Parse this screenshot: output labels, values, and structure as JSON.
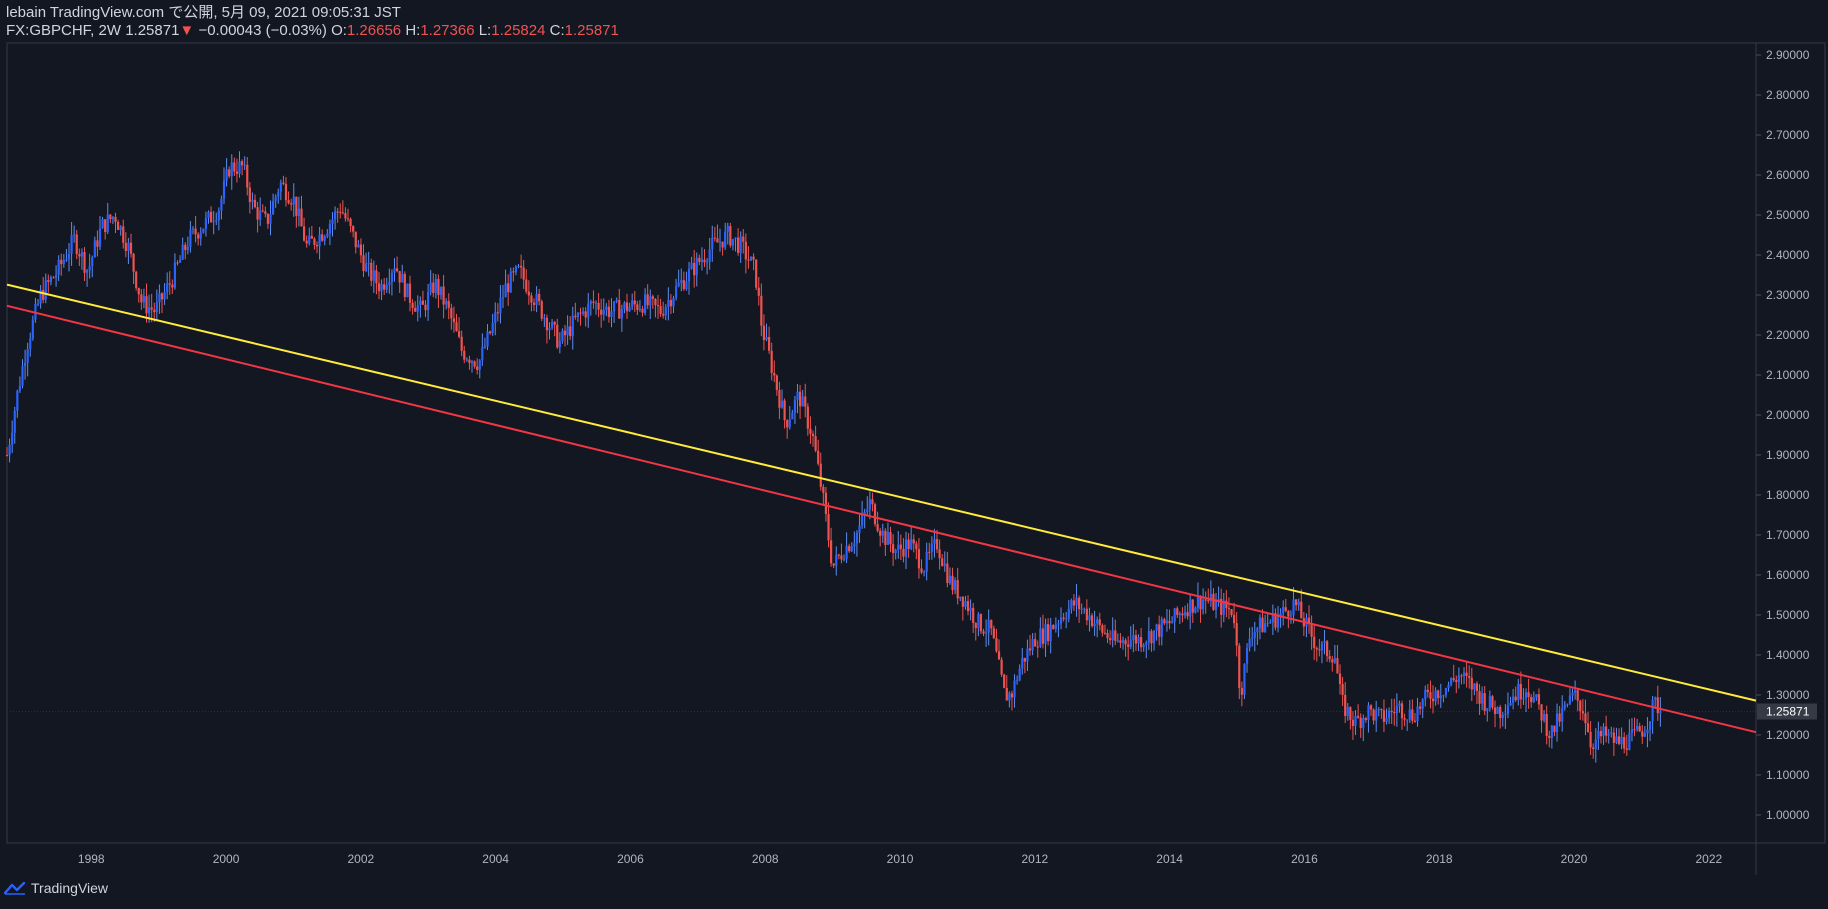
{
  "header": {
    "publisher": "lebain TradingView.com で公開, 5月 09, 2021 09:05:31 JST",
    "symbol": "FX:GBPCHF, 2W",
    "last": "1.25871",
    "change_arrow": "▼",
    "change": "−0.00043 (−0.03%)",
    "o_label": "O:",
    "o_value": "1.26656",
    "h_label": "H:",
    "h_value": "1.27366",
    "l_label": "L:",
    "l_value": "1.25824",
    "c_label": "C:",
    "c_value": "1.25871"
  },
  "footer": {
    "brand": "TradingView",
    "logo_icon": "tradingview-logo-icon"
  },
  "chart_data": {
    "type": "candlestick",
    "symbol": "FX:GBPCHF",
    "interval": "2W",
    "xlim": [
      1996.75,
      2022.7
    ],
    "ylim": [
      0.93,
      2.93
    ],
    "x_ticks": [
      "1998",
      "2000",
      "2002",
      "2004",
      "2006",
      "2008",
      "2010",
      "2012",
      "2014",
      "2016",
      "2018",
      "2020",
      "2022"
    ],
    "y_ticks": [
      "1.00000",
      "1.10000",
      "1.20000",
      "1.30000",
      "1.40000",
      "1.50000",
      "1.60000",
      "1.70000",
      "1.80000",
      "1.90000",
      "2.00000",
      "2.10000",
      "2.20000",
      "2.30000",
      "2.40000",
      "2.50000",
      "2.60000",
      "2.70000",
      "2.80000",
      "2.90000"
    ],
    "last_price_label": "1.25871",
    "last_price": 1.25871,
    "colors": {
      "up": "#2962ff",
      "up_wick": "#5b8def",
      "down": "#ef5350",
      "background": "#131722",
      "last_price_bg": "#363a45"
    },
    "price_path": [
      [
        1996.75,
        1.9
      ],
      [
        1996.9,
        2.05
      ],
      [
        1997.05,
        2.18
      ],
      [
        1997.25,
        2.3
      ],
      [
        1997.5,
        2.36
      ],
      [
        1997.75,
        2.44
      ],
      [
        1997.95,
        2.36
      ],
      [
        1998.15,
        2.47
      ],
      [
        1998.35,
        2.5
      ],
      [
        1998.55,
        2.42
      ],
      [
        1998.75,
        2.28
      ],
      [
        1998.95,
        2.26
      ],
      [
        1999.2,
        2.34
      ],
      [
        1999.45,
        2.44
      ],
      [
        1999.7,
        2.48
      ],
      [
        1999.9,
        2.52
      ],
      [
        2000.05,
        2.62
      ],
      [
        2000.25,
        2.62
      ],
      [
        2000.4,
        2.52
      ],
      [
        2000.6,
        2.48
      ],
      [
        2000.8,
        2.58
      ],
      [
        2001.0,
        2.54
      ],
      [
        2001.2,
        2.42
      ],
      [
        2001.45,
        2.46
      ],
      [
        2001.7,
        2.52
      ],
      [
        2001.9,
        2.44
      ],
      [
        2002.1,
        2.36
      ],
      [
        2002.3,
        2.32
      ],
      [
        2002.5,
        2.38
      ],
      [
        2002.7,
        2.3
      ],
      [
        2002.9,
        2.26
      ],
      [
        2003.1,
        2.33
      ],
      [
        2003.3,
        2.26
      ],
      [
        2003.5,
        2.16
      ],
      [
        2003.75,
        2.13
      ],
      [
        2003.95,
        2.22
      ],
      [
        2004.15,
        2.32
      ],
      [
        2004.35,
        2.36
      ],
      [
        2004.55,
        2.3
      ],
      [
        2004.75,
        2.24
      ],
      [
        2004.95,
        2.18
      ],
      [
        2005.2,
        2.24
      ],
      [
        2005.45,
        2.28
      ],
      [
        2005.7,
        2.26
      ],
      [
        2005.95,
        2.27
      ],
      [
        2006.2,
        2.28
      ],
      [
        2006.45,
        2.26
      ],
      [
        2006.7,
        2.32
      ],
      [
        2006.95,
        2.37
      ],
      [
        2007.2,
        2.42
      ],
      [
        2007.45,
        2.45
      ],
      [
        2007.65,
        2.42
      ],
      [
        2007.85,
        2.36
      ],
      [
        2007.95,
        2.22
      ],
      [
        2008.1,
        2.12
      ],
      [
        2008.3,
        1.98
      ],
      [
        2008.5,
        2.05
      ],
      [
        2008.7,
        1.95
      ],
      [
        2008.85,
        1.8
      ],
      [
        2009.0,
        1.62
      ],
      [
        2009.15,
        1.66
      ],
      [
        2009.35,
        1.7
      ],
      [
        2009.55,
        1.78
      ],
      [
        2009.75,
        1.7
      ],
      [
        2009.95,
        1.66
      ],
      [
        2010.15,
        1.68
      ],
      [
        2010.35,
        1.62
      ],
      [
        2010.55,
        1.68
      ],
      [
        2010.75,
        1.58
      ],
      [
        2010.95,
        1.54
      ],
      [
        2011.15,
        1.48
      ],
      [
        2011.35,
        1.46
      ],
      [
        2011.55,
        1.3
      ],
      [
        2011.65,
        1.3
      ],
      [
        2011.8,
        1.38
      ],
      [
        2012.0,
        1.44
      ],
      [
        2012.2,
        1.46
      ],
      [
        2012.4,
        1.5
      ],
      [
        2012.6,
        1.53
      ],
      [
        2012.8,
        1.5
      ],
      [
        2013.0,
        1.46
      ],
      [
        2013.2,
        1.43
      ],
      [
        2013.4,
        1.44
      ],
      [
        2013.6,
        1.44
      ],
      [
        2013.8,
        1.46
      ],
      [
        2014.0,
        1.48
      ],
      [
        2014.25,
        1.52
      ],
      [
        2014.5,
        1.54
      ],
      [
        2014.75,
        1.52
      ],
      [
        2014.95,
        1.51
      ],
      [
        2015.05,
        1.3
      ],
      [
        2015.2,
        1.46
      ],
      [
        2015.45,
        1.48
      ],
      [
        2015.65,
        1.5
      ],
      [
        2015.85,
        1.53
      ],
      [
        2016.0,
        1.48
      ],
      [
        2016.2,
        1.42
      ],
      [
        2016.45,
        1.4
      ],
      [
        2016.55,
        1.28
      ],
      [
        2016.75,
        1.23
      ],
      [
        2016.95,
        1.26
      ],
      [
        2017.15,
        1.24
      ],
      [
        2017.4,
        1.27
      ],
      [
        2017.6,
        1.25
      ],
      [
        2017.85,
        1.3
      ],
      [
        2018.1,
        1.32
      ],
      [
        2018.3,
        1.35
      ],
      [
        2018.5,
        1.32
      ],
      [
        2018.7,
        1.28
      ],
      [
        2018.9,
        1.26
      ],
      [
        2019.1,
        1.3
      ],
      [
        2019.3,
        1.32
      ],
      [
        2019.5,
        1.26
      ],
      [
        2019.65,
        1.2
      ],
      [
        2019.85,
        1.26
      ],
      [
        2020.0,
        1.3
      ],
      [
        2020.15,
        1.26
      ],
      [
        2020.25,
        1.18
      ],
      [
        2020.45,
        1.2
      ],
      [
        2020.65,
        1.18
      ],
      [
        2020.85,
        1.19
      ],
      [
        2021.05,
        1.22
      ],
      [
        2021.2,
        1.28
      ],
      [
        2021.3,
        1.26
      ]
    ],
    "trendlines": [
      {
        "color": "#ffeb3b",
        "from": [
          1996.75,
          2.326
        ],
        "to": [
          2022.7,
          1.286
        ]
      },
      {
        "color": "#f23645",
        "from": [
          1996.75,
          2.273
        ],
        "to": [
          2022.7,
          1.207
        ]
      }
    ]
  }
}
